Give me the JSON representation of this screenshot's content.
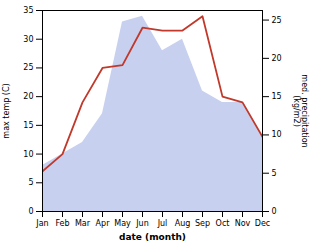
{
  "chart_data": {
    "type": "line",
    "xlabel": "date (month)",
    "ylabel": "max temp (C)",
    "y2label": "med. precipitation\n(kg/m2)",
    "categories": [
      "Jan",
      "Feb",
      "Mar",
      "Apr",
      "May",
      "Jun",
      "Jul",
      "Aug",
      "Sep",
      "Oct",
      "Nov",
      "Dec"
    ],
    "series": [
      {
        "type": "area",
        "color": "#c8d0f0",
        "values": [
          8,
          10,
          12,
          17,
          33,
          34,
          28,
          30,
          21,
          19,
          19,
          13
        ]
      },
      {
        "type": "line",
        "color": "#c0392b",
        "values": [
          7,
          10,
          19,
          25,
          25.5,
          32,
          31.5,
          31.5,
          34,
          20,
          19,
          13
        ]
      }
    ],
    "ylim": [
      0,
      35
    ],
    "yticks": [
      0,
      5,
      10,
      15,
      20,
      25,
      30,
      35
    ],
    "y2lim": [
      0,
      26.25
    ],
    "y2ticks": [
      0,
      5,
      10,
      15,
      20,
      25
    ]
  }
}
